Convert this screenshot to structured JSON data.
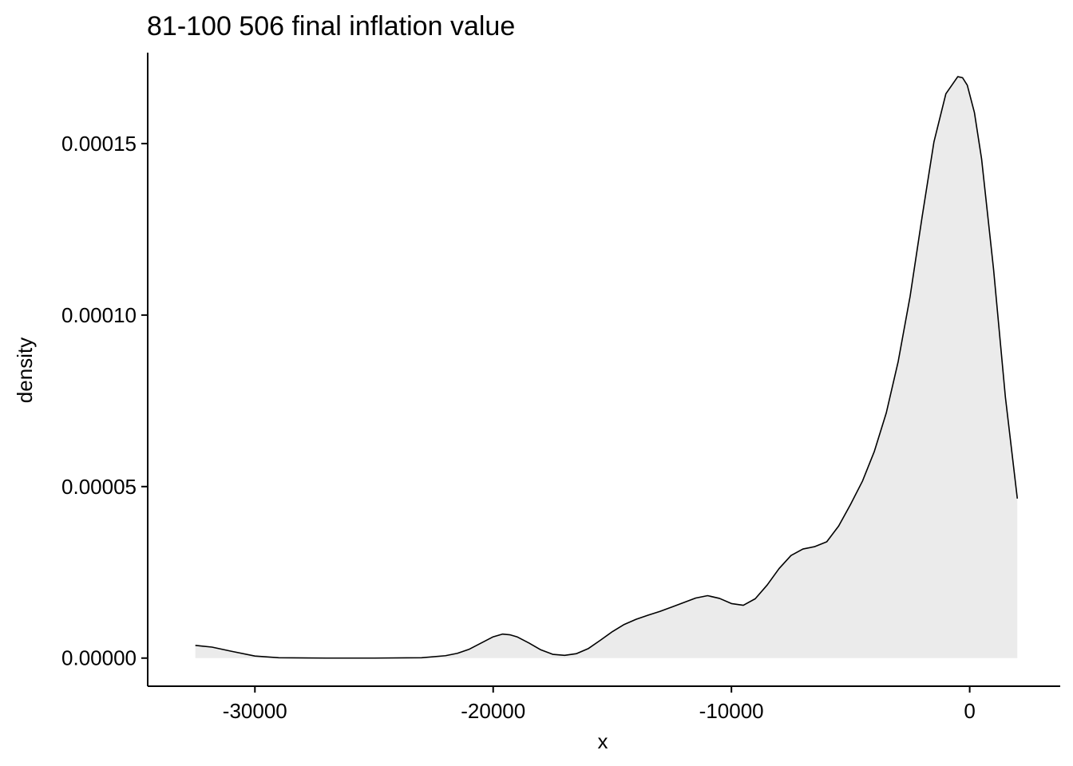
{
  "chart_data": {
    "type": "area",
    "title": "81-100 506 final inflation value",
    "xlabel": "x",
    "ylabel": "density",
    "xlim": [
      -34500,
      3800
    ],
    "ylim": [
      -8.2e-06,
      0.0001765
    ],
    "x_ticks": [
      {
        "value": -30000,
        "label": "-30000"
      },
      {
        "value": -20000,
        "label": "-20000"
      },
      {
        "value": -10000,
        "label": "-10000"
      },
      {
        "value": 0,
        "label": "0"
      }
    ],
    "y_ticks": [
      {
        "value": 0,
        "label": "0.00000"
      },
      {
        "value": 5e-05,
        "label": "0.00005"
      },
      {
        "value": 0.0001,
        "label": "0.00010"
      },
      {
        "value": 0.00015,
        "label": "0.00015"
      }
    ],
    "grid": false,
    "legend": "none",
    "fill_color": "#EBEBEB",
    "line_color": "#000000",
    "series": [
      {
        "x": [
          -32500,
          -31800,
          -31000,
          -30000,
          -29000,
          -27000,
          -25000,
          -23000,
          -22000,
          -21500,
          -21000,
          -20500,
          -20000,
          -19600,
          -19300,
          -19000,
          -18500,
          -18000,
          -17500,
          -17000,
          -16500,
          -16000,
          -15500,
          -15000,
          -14500,
          -14000,
          -13500,
          -13000,
          -12500,
          -12000,
          -11500,
          -11000,
          -10500,
          -10000,
          -9500,
          -9000,
          -8500,
          -8000,
          -7500,
          -7000,
          -6500,
          -6000,
          -5500,
          -5000,
          -4500,
          -4000,
          -3500,
          -3000,
          -2500,
          -2000,
          -1500,
          -1000,
          -500,
          -300,
          -100,
          200,
          500,
          1000,
          1500,
          2000
        ],
        "y": [
          3.7e-06,
          3.2e-06,
          2e-06,
          6e-07,
          1e-07,
          0.0,
          0.0,
          1e-07,
          7e-07,
          1.4e-06,
          2.6e-06,
          4.4e-06,
          6.2e-06,
          7e-06,
          6.8e-06,
          6.2e-06,
          4.4e-06,
          2.4e-06,
          1.1e-06,
          8e-07,
          1.3e-06,
          2.8e-06,
          5.2e-06,
          7.7e-06,
          9.8e-06,
          1.13e-05,
          1.25e-05,
          1.36e-05,
          1.49e-05,
          1.62e-05,
          1.75e-05,
          1.82e-05,
          1.74e-05,
          1.59e-05,
          1.54e-05,
          1.73e-05,
          2.13e-05,
          2.61e-05,
          2.99e-05,
          3.18e-05,
          3.25e-05,
          3.39e-05,
          3.85e-05,
          4.48e-05,
          5.16e-05,
          6.03e-05,
          7.15e-05,
          8.65e-05,
          0.0001055,
          0.0001285,
          0.0001505,
          0.0001645,
          0.0001695,
          0.0001692,
          0.000167,
          0.000159,
          0.0001455,
          0.0001135,
          7.6e-05,
          4.65e-05
        ]
      }
    ]
  }
}
